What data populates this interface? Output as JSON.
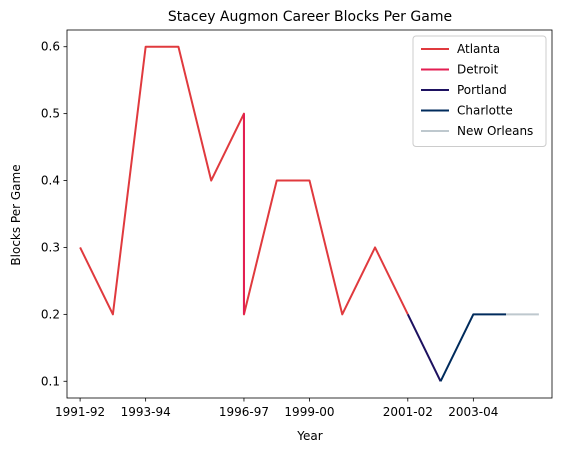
{
  "chart_data": {
    "type": "line",
    "title": "Stacey Augmon Career Blocks Per Game",
    "xlabel": "Year",
    "ylabel": "Blocks Per Game",
    "x_tick_labels": [
      "1991-92",
      "1993-94",
      "1996-97",
      "1999-00",
      "2001-02",
      "2003-04"
    ],
    "x_tick_index": [
      0,
      2,
      5,
      7,
      10,
      12
    ],
    "y_ticks": [
      0.1,
      0.2,
      0.3,
      0.4,
      0.5,
      0.6
    ],
    "xlim": [
      -0.4,
      14.4
    ],
    "ylim": [
      0.075,
      0.625
    ],
    "legend_position": "upper right",
    "grid": false,
    "series": [
      {
        "name": "Atlanta",
        "color": "#E03A3E",
        "points": [
          [
            0,
            0.3
          ],
          [
            1,
            0.2
          ],
          [
            2,
            0.6
          ],
          [
            3,
            0.6
          ],
          [
            4,
            0.4
          ],
          [
            5,
            0.5
          ],
          [
            5,
            0.2
          ],
          [
            6,
            0.4
          ],
          [
            7,
            0.4
          ],
          [
            8,
            0.2
          ],
          [
            9,
            0.3
          ],
          [
            10,
            0.2
          ]
        ]
      },
      {
        "name": "Detroit",
        "color": "#E31E52",
        "points": [
          [
            5,
            0.5
          ],
          [
            5,
            0.2
          ]
        ]
      },
      {
        "name": "Portland",
        "color": "#1D1160",
        "points": [
          [
            10,
            0.2
          ],
          [
            11,
            0.1
          ]
        ]
      },
      {
        "name": "Charlotte",
        "color": "#002B5C",
        "points": [
          [
            11,
            0.1
          ],
          [
            12,
            0.2
          ],
          [
            13,
            0.2
          ]
        ]
      },
      {
        "name": "New Orleans",
        "color": "#BEC8CE",
        "points": [
          [
            13,
            0.2
          ],
          [
            14,
            0.2
          ]
        ]
      }
    ]
  }
}
